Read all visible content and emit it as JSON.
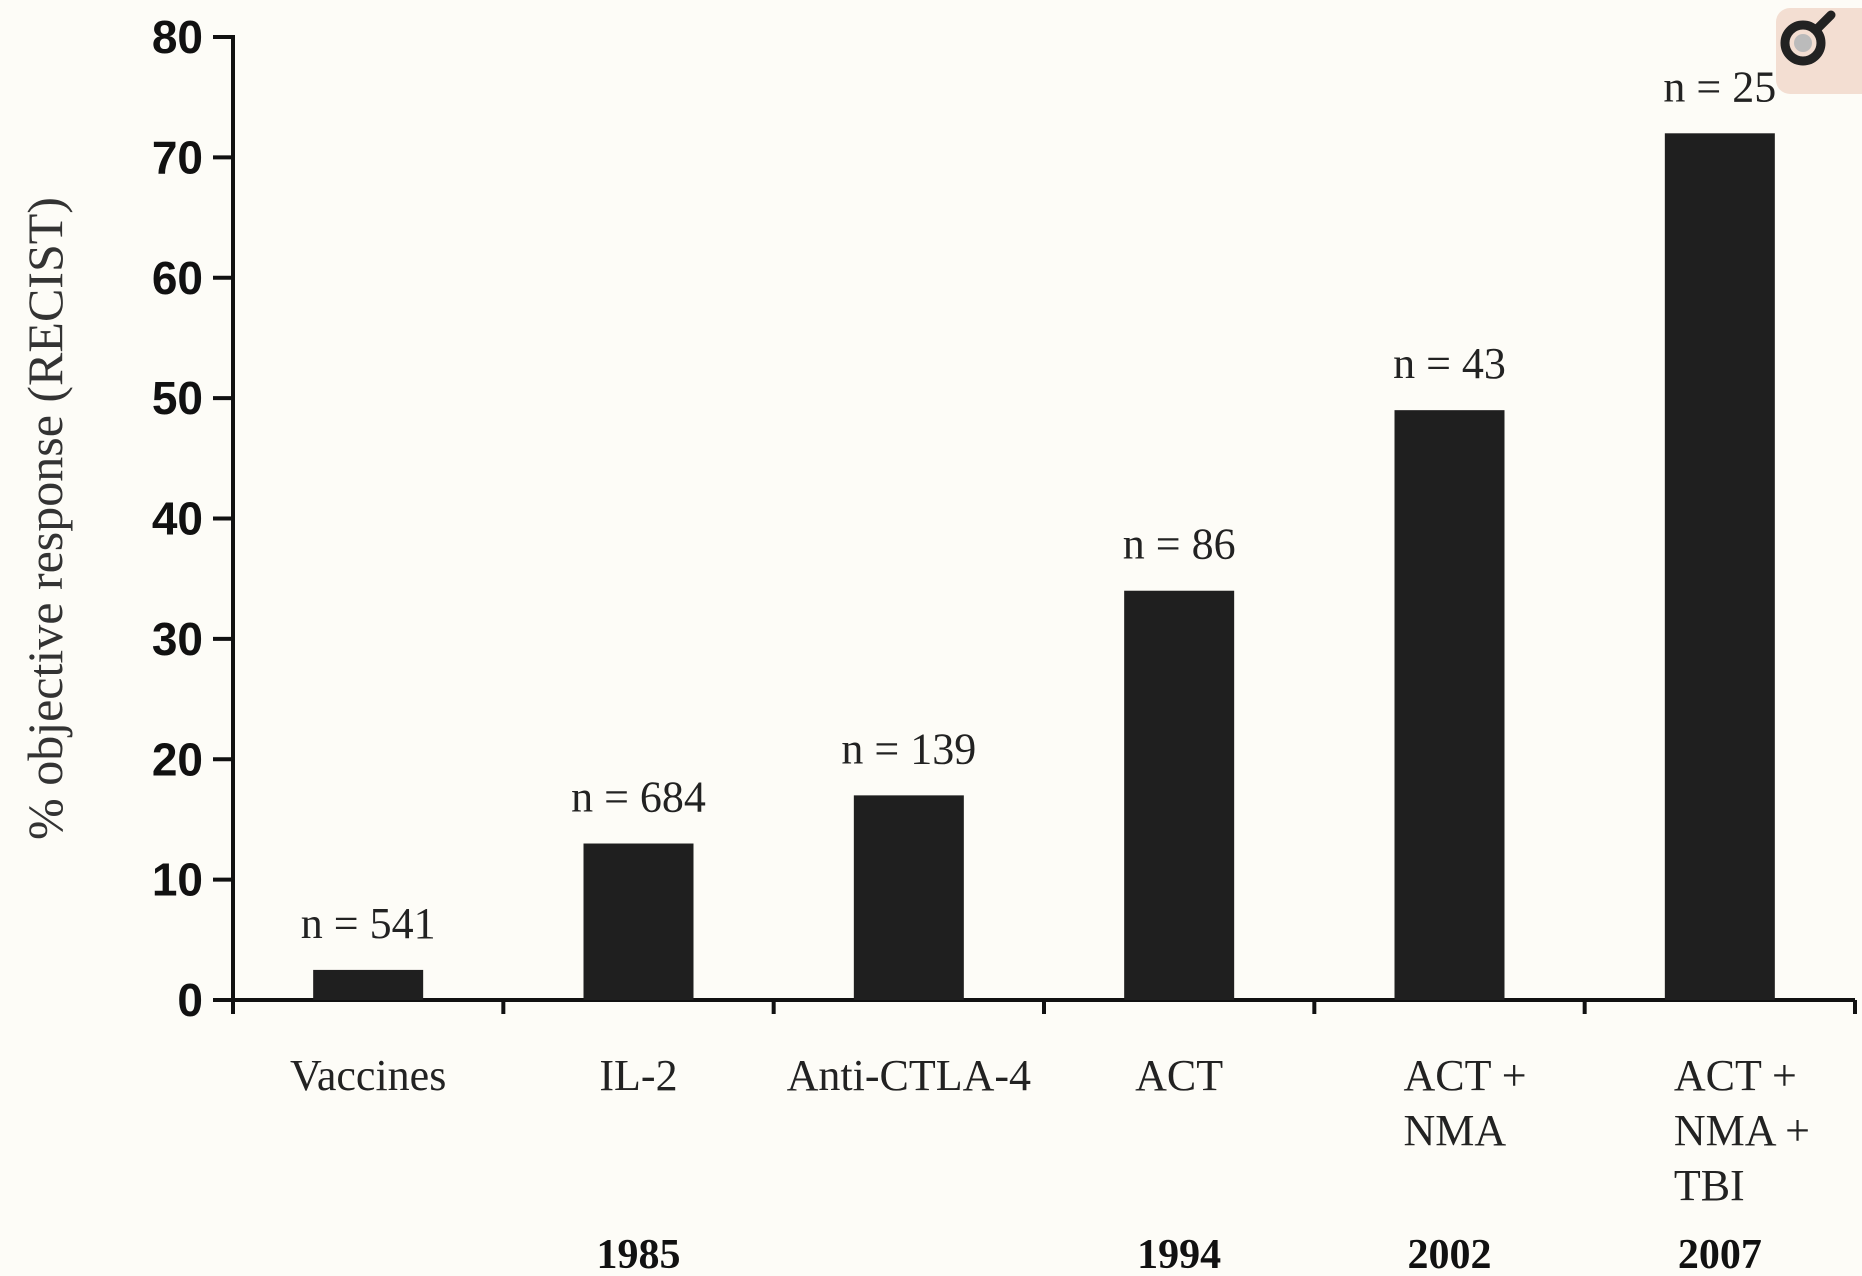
{
  "chart_data": {
    "type": "bar",
    "title": "",
    "xlabel": "",
    "ylabel": "% objective response (RECIST)",
    "ylim": [
      0,
      80
    ],
    "yticks": [
      "0",
      "10",
      "20",
      "30",
      "40",
      "50",
      "60",
      "70",
      "80"
    ],
    "grid": false,
    "categories": [
      [
        "Vaccines"
      ],
      [
        "IL-2"
      ],
      [
        "Anti-CTLA-4"
      ],
      [
        "ACT"
      ],
      [
        "ACT +",
        "NMA"
      ],
      [
        "ACT +",
        "NMA +",
        "TBI"
      ]
    ],
    "values": [
      2.5,
      13,
      17,
      34,
      49,
      72
    ],
    "bar_labels": [
      "n = 541",
      "n = 684",
      "n = 139",
      "n = 86",
      "n = 43",
      "n = 25"
    ],
    "years": [
      "",
      "1985",
      "",
      "1994",
      "2002",
      "2007"
    ],
    "bar_color": "#1f1f1f"
  },
  "overlay": {
    "icon": "magnifier-icon"
  }
}
